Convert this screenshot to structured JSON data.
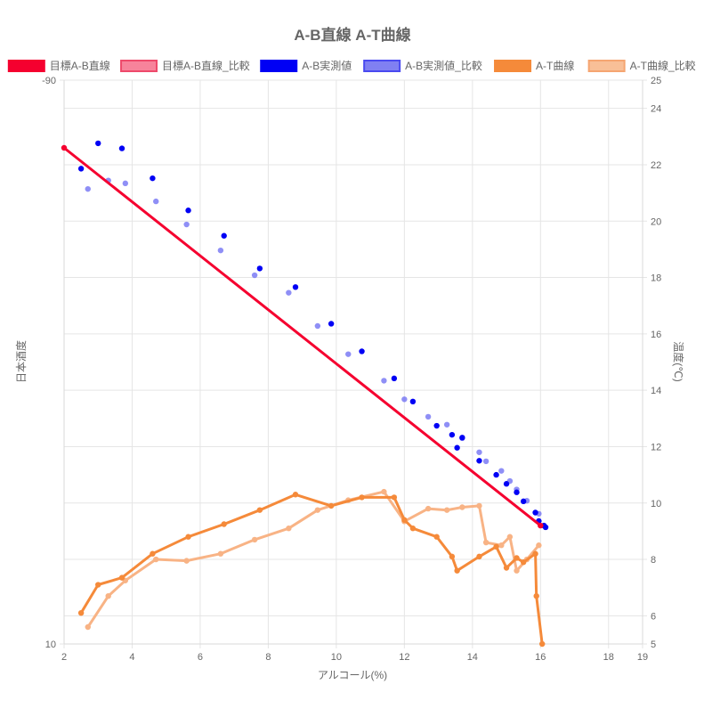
{
  "chart_data": {
    "type": "line",
    "title": "A-B直線 A-T曲線",
    "xlabel": "アルコール(%)",
    "ylabel_left": "日本酒度",
    "ylabel_right": "温度(℃)",
    "x_range": [
      2,
      19
    ],
    "x_ticks": [
      2,
      4,
      6,
      8,
      10,
      12,
      14,
      16,
      18,
      19
    ],
    "y_left_range": [
      10,
      -90
    ],
    "y_left_tick_labels": [
      "-90",
      "10"
    ],
    "y_right_range": [
      5,
      25
    ],
    "y_right_ticks": [
      5,
      6,
      8,
      10,
      12,
      14,
      16,
      18,
      20,
      22,
      24,
      25
    ],
    "legend_position": "top",
    "grid": true,
    "legend": [
      {
        "label": "目標A-B直線",
        "fill": "#f5002f",
        "border": "#f5002f"
      },
      {
        "label": "目標A-B直線_比較",
        "fill": "#f7839b",
        "border": "#ee4a6b"
      },
      {
        "label": "A-B実測値",
        "fill": "#0000f5",
        "border": "#0000f5"
      },
      {
        "label": "A-B実測値_比較",
        "fill": "#8080f2",
        "border": "#4a4af0"
      },
      {
        "label": "A-T曲線",
        "fill": "#f58a3a",
        "border": "#f58a3a"
      },
      {
        "label": "A-T曲線_比較",
        "fill": "#f8bf97",
        "border": "#f5a571"
      }
    ],
    "series": [
      {
        "name": "目標A-B直線",
        "axis": "left",
        "color": "#f5002f",
        "style": "line",
        "points": [
          [
            2,
            -78
          ],
          [
            16,
            -11
          ]
        ]
      },
      {
        "name": "A-B実測値",
        "axis": "left",
        "color": "#0000f5",
        "style": "scatter",
        "points": [
          [
            2.5,
            -74.3
          ],
          [
            3.0,
            -78.8
          ],
          [
            3.7,
            -77.9
          ],
          [
            4.6,
            -72.6
          ],
          [
            5.65,
            -66.9
          ],
          [
            6.7,
            -62.4
          ],
          [
            7.75,
            -56.6
          ],
          [
            8.8,
            -53.3
          ],
          [
            9.85,
            -46.8
          ],
          [
            10.75,
            -41.9
          ],
          [
            11.7,
            -37.1
          ],
          [
            12.25,
            -33.0
          ],
          [
            12.95,
            -28.7
          ],
          [
            13.4,
            -27.1
          ],
          [
            13.55,
            -24.8
          ],
          [
            13.7,
            -26.6
          ],
          [
            14.2,
            -22.5
          ],
          [
            14.7,
            -20.0
          ],
          [
            15.0,
            -18.4
          ],
          [
            15.3,
            -16.9
          ],
          [
            15.5,
            -15.3
          ],
          [
            15.85,
            -13.3
          ],
          [
            15.95,
            -11.8
          ],
          [
            16.1,
            -11.0
          ],
          [
            16.15,
            -10.7
          ]
        ]
      },
      {
        "name": "A-B実測値_比較",
        "axis": "left",
        "color": "#6a6af3",
        "style": "scatter",
        "points": [
          [
            2.7,
            -70.7
          ],
          [
            3.3,
            -72.2
          ],
          [
            3.8,
            -71.7
          ],
          [
            4.7,
            -68.5
          ],
          [
            5.6,
            -64.4
          ],
          [
            6.6,
            -59.8
          ],
          [
            7.6,
            -55.4
          ],
          [
            8.6,
            -52.3
          ],
          [
            9.45,
            -46.4
          ],
          [
            10.35,
            -41.4
          ],
          [
            11.4,
            -36.7
          ],
          [
            12.0,
            -33.4
          ],
          [
            12.7,
            -30.3
          ],
          [
            13.25,
            -28.9
          ],
          [
            13.7,
            -26.5
          ],
          [
            14.2,
            -24.0
          ],
          [
            14.4,
            -22.4
          ],
          [
            14.85,
            -20.7
          ],
          [
            15.1,
            -18.9
          ],
          [
            15.3,
            -17.4
          ],
          [
            15.6,
            -15.4
          ],
          [
            15.95,
            -13.1
          ]
        ]
      },
      {
        "name": "A-T曲線",
        "axis": "right",
        "color": "#f58a3a",
        "style": "line",
        "points": [
          [
            2.5,
            6.1
          ],
          [
            3.0,
            7.1
          ],
          [
            3.7,
            7.35
          ],
          [
            4.6,
            8.2
          ],
          [
            5.65,
            8.8
          ],
          [
            6.7,
            9.25
          ],
          [
            7.75,
            9.75
          ],
          [
            8.8,
            10.3
          ],
          [
            9.85,
            9.9
          ],
          [
            10.75,
            10.2
          ],
          [
            11.7,
            10.2
          ],
          [
            12.0,
            9.4
          ],
          [
            12.25,
            9.1
          ],
          [
            12.95,
            8.8
          ],
          [
            13.4,
            8.1
          ],
          [
            13.55,
            7.6
          ],
          [
            14.2,
            8.1
          ],
          [
            14.7,
            8.45
          ],
          [
            15.0,
            7.7
          ],
          [
            15.3,
            8.05
          ],
          [
            15.5,
            7.9
          ],
          [
            15.85,
            8.2
          ],
          [
            15.88,
            6.7
          ],
          [
            16.05,
            5.0
          ]
        ]
      },
      {
        "name": "A-T曲線_比較",
        "axis": "right",
        "color": "#f8b385",
        "style": "line",
        "points": [
          [
            2.7,
            5.6
          ],
          [
            3.3,
            6.7
          ],
          [
            3.8,
            7.25
          ],
          [
            4.7,
            8.0
          ],
          [
            5.6,
            7.95
          ],
          [
            6.6,
            8.2
          ],
          [
            7.6,
            8.7
          ],
          [
            8.6,
            9.1
          ],
          [
            9.45,
            9.75
          ],
          [
            10.35,
            10.1
          ],
          [
            11.4,
            10.4
          ],
          [
            12.0,
            9.35
          ],
          [
            12.7,
            9.8
          ],
          [
            13.25,
            9.75
          ],
          [
            13.7,
            9.85
          ],
          [
            14.2,
            9.9
          ],
          [
            14.4,
            8.6
          ],
          [
            14.85,
            8.5
          ],
          [
            15.1,
            8.8
          ],
          [
            15.3,
            7.6
          ],
          [
            15.6,
            8.0
          ],
          [
            15.95,
            8.5
          ]
        ]
      }
    ]
  }
}
